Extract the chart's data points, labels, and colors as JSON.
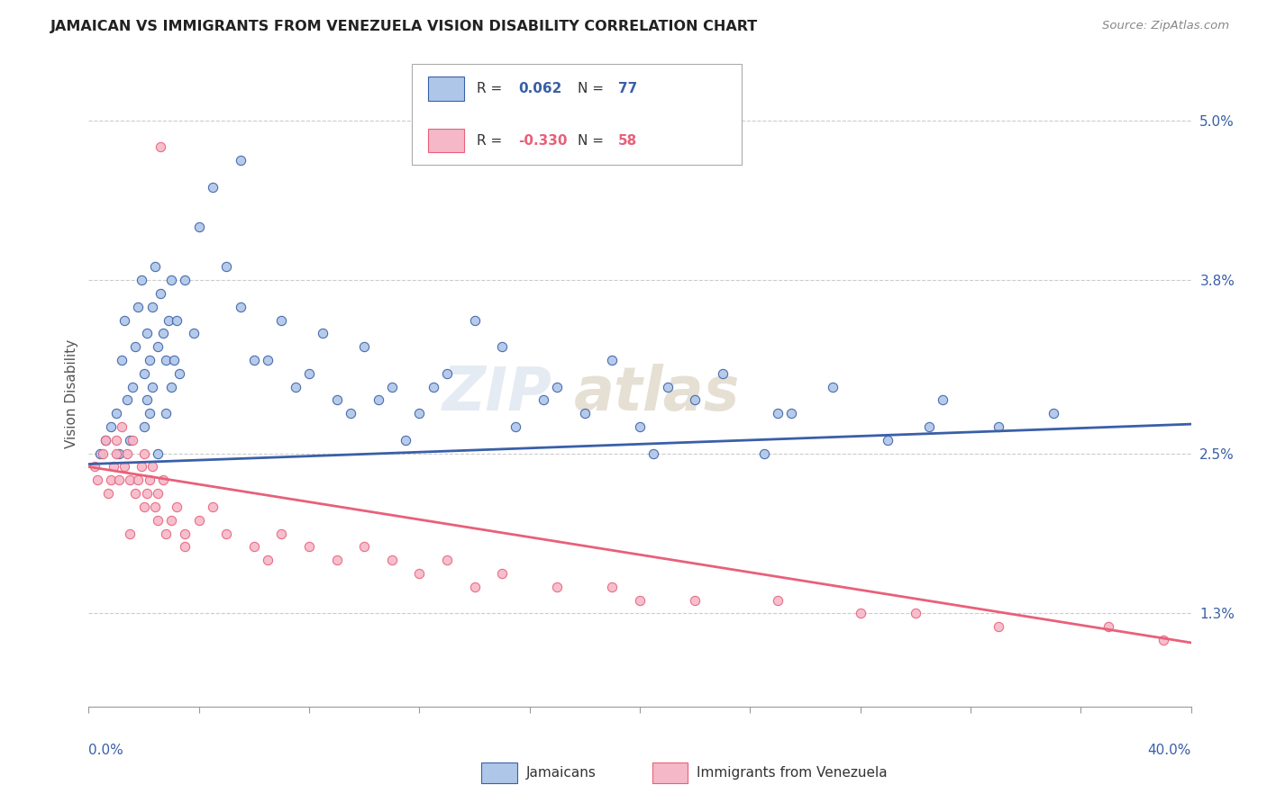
{
  "title": "JAMAICAN VS IMMIGRANTS FROM VENEZUELA VISION DISABILITY CORRELATION CHART",
  "source": "Source: ZipAtlas.com",
  "ylabel": "Vision Disability",
  "yticks": [
    1.3,
    2.5,
    3.8,
    5.0
  ],
  "ytick_labels": [
    "1.3%",
    "2.5%",
    "3.8%",
    "5.0%"
  ],
  "xmin": 0.0,
  "xmax": 40.0,
  "ymin": 0.6,
  "ymax": 5.3,
  "color_blue": "#aec6e8",
  "color_pink": "#f5b8c8",
  "line_blue": "#3a5fa8",
  "line_pink": "#e8607a",
  "watermark1": "ZIP",
  "watermark2": "atlas",
  "r1": "0.062",
  "n1": "77",
  "r2": "-0.330",
  "n2": "58",
  "jx": [
    0.4,
    0.6,
    0.8,
    1.0,
    1.1,
    1.2,
    1.3,
    1.4,
    1.5,
    1.6,
    1.7,
    1.8,
    1.9,
    2.0,
    2.0,
    2.1,
    2.1,
    2.2,
    2.2,
    2.3,
    2.3,
    2.4,
    2.5,
    2.5,
    2.6,
    2.7,
    2.8,
    2.8,
    2.9,
    3.0,
    3.0,
    3.1,
    3.2,
    3.3,
    3.5,
    3.8,
    4.0,
    4.5,
    5.0,
    5.5,
    6.0,
    7.0,
    8.0,
    9.0,
    10.0,
    11.0,
    12.0,
    13.0,
    14.0,
    15.0,
    17.0,
    18.0,
    19.0,
    20.0,
    21.0,
    22.0,
    23.0,
    25.0,
    27.0,
    29.0,
    31.0,
    33.0,
    35.0,
    5.5,
    6.5,
    8.5,
    10.5,
    12.5,
    15.5,
    20.5,
    25.5,
    30.5,
    7.5,
    9.5,
    11.5,
    16.5,
    24.5
  ],
  "jy": [
    2.5,
    2.6,
    2.7,
    2.8,
    2.5,
    3.2,
    3.5,
    2.9,
    2.6,
    3.0,
    3.3,
    3.6,
    3.8,
    2.7,
    3.1,
    2.9,
    3.4,
    2.8,
    3.2,
    3.0,
    3.6,
    3.9,
    2.5,
    3.3,
    3.7,
    3.4,
    2.8,
    3.2,
    3.5,
    3.0,
    3.8,
    3.2,
    3.5,
    3.1,
    3.8,
    3.4,
    4.2,
    4.5,
    3.9,
    4.7,
    3.2,
    3.5,
    3.1,
    2.9,
    3.3,
    3.0,
    2.8,
    3.1,
    3.5,
    3.3,
    3.0,
    2.8,
    3.2,
    2.7,
    3.0,
    2.9,
    3.1,
    2.8,
    3.0,
    2.6,
    2.9,
    2.7,
    2.8,
    3.6,
    3.2,
    3.4,
    2.9,
    3.0,
    2.7,
    2.5,
    2.8,
    2.7,
    3.0,
    2.8,
    2.6,
    2.9,
    2.5
  ],
  "vx": [
    0.2,
    0.3,
    0.5,
    0.6,
    0.7,
    0.8,
    0.9,
    1.0,
    1.0,
    1.1,
    1.2,
    1.3,
    1.4,
    1.5,
    1.6,
    1.7,
    1.8,
    1.9,
    2.0,
    2.0,
    2.1,
    2.2,
    2.3,
    2.4,
    2.5,
    2.6,
    2.7,
    2.8,
    3.0,
    3.2,
    3.5,
    4.0,
    4.5,
    5.0,
    6.0,
    7.0,
    8.0,
    9.0,
    10.0,
    11.0,
    12.0,
    13.0,
    15.0,
    17.0,
    19.0,
    22.0,
    25.0,
    28.0,
    30.0,
    33.0,
    37.0,
    39.0,
    1.5,
    2.5,
    3.5,
    6.5,
    14.0,
    20.0
  ],
  "vy": [
    2.4,
    2.3,
    2.5,
    2.6,
    2.2,
    2.3,
    2.4,
    2.5,
    2.6,
    2.3,
    2.7,
    2.4,
    2.5,
    2.3,
    2.6,
    2.2,
    2.3,
    2.4,
    2.1,
    2.5,
    2.2,
    2.3,
    2.4,
    2.1,
    2.2,
    4.8,
    2.3,
    1.9,
    2.0,
    2.1,
    1.9,
    2.0,
    2.1,
    1.9,
    1.8,
    1.9,
    1.8,
    1.7,
    1.8,
    1.7,
    1.6,
    1.7,
    1.6,
    1.5,
    1.5,
    1.4,
    1.4,
    1.3,
    1.3,
    1.2,
    1.2,
    1.1,
    1.9,
    2.0,
    1.8,
    1.7,
    1.5,
    1.4
  ]
}
